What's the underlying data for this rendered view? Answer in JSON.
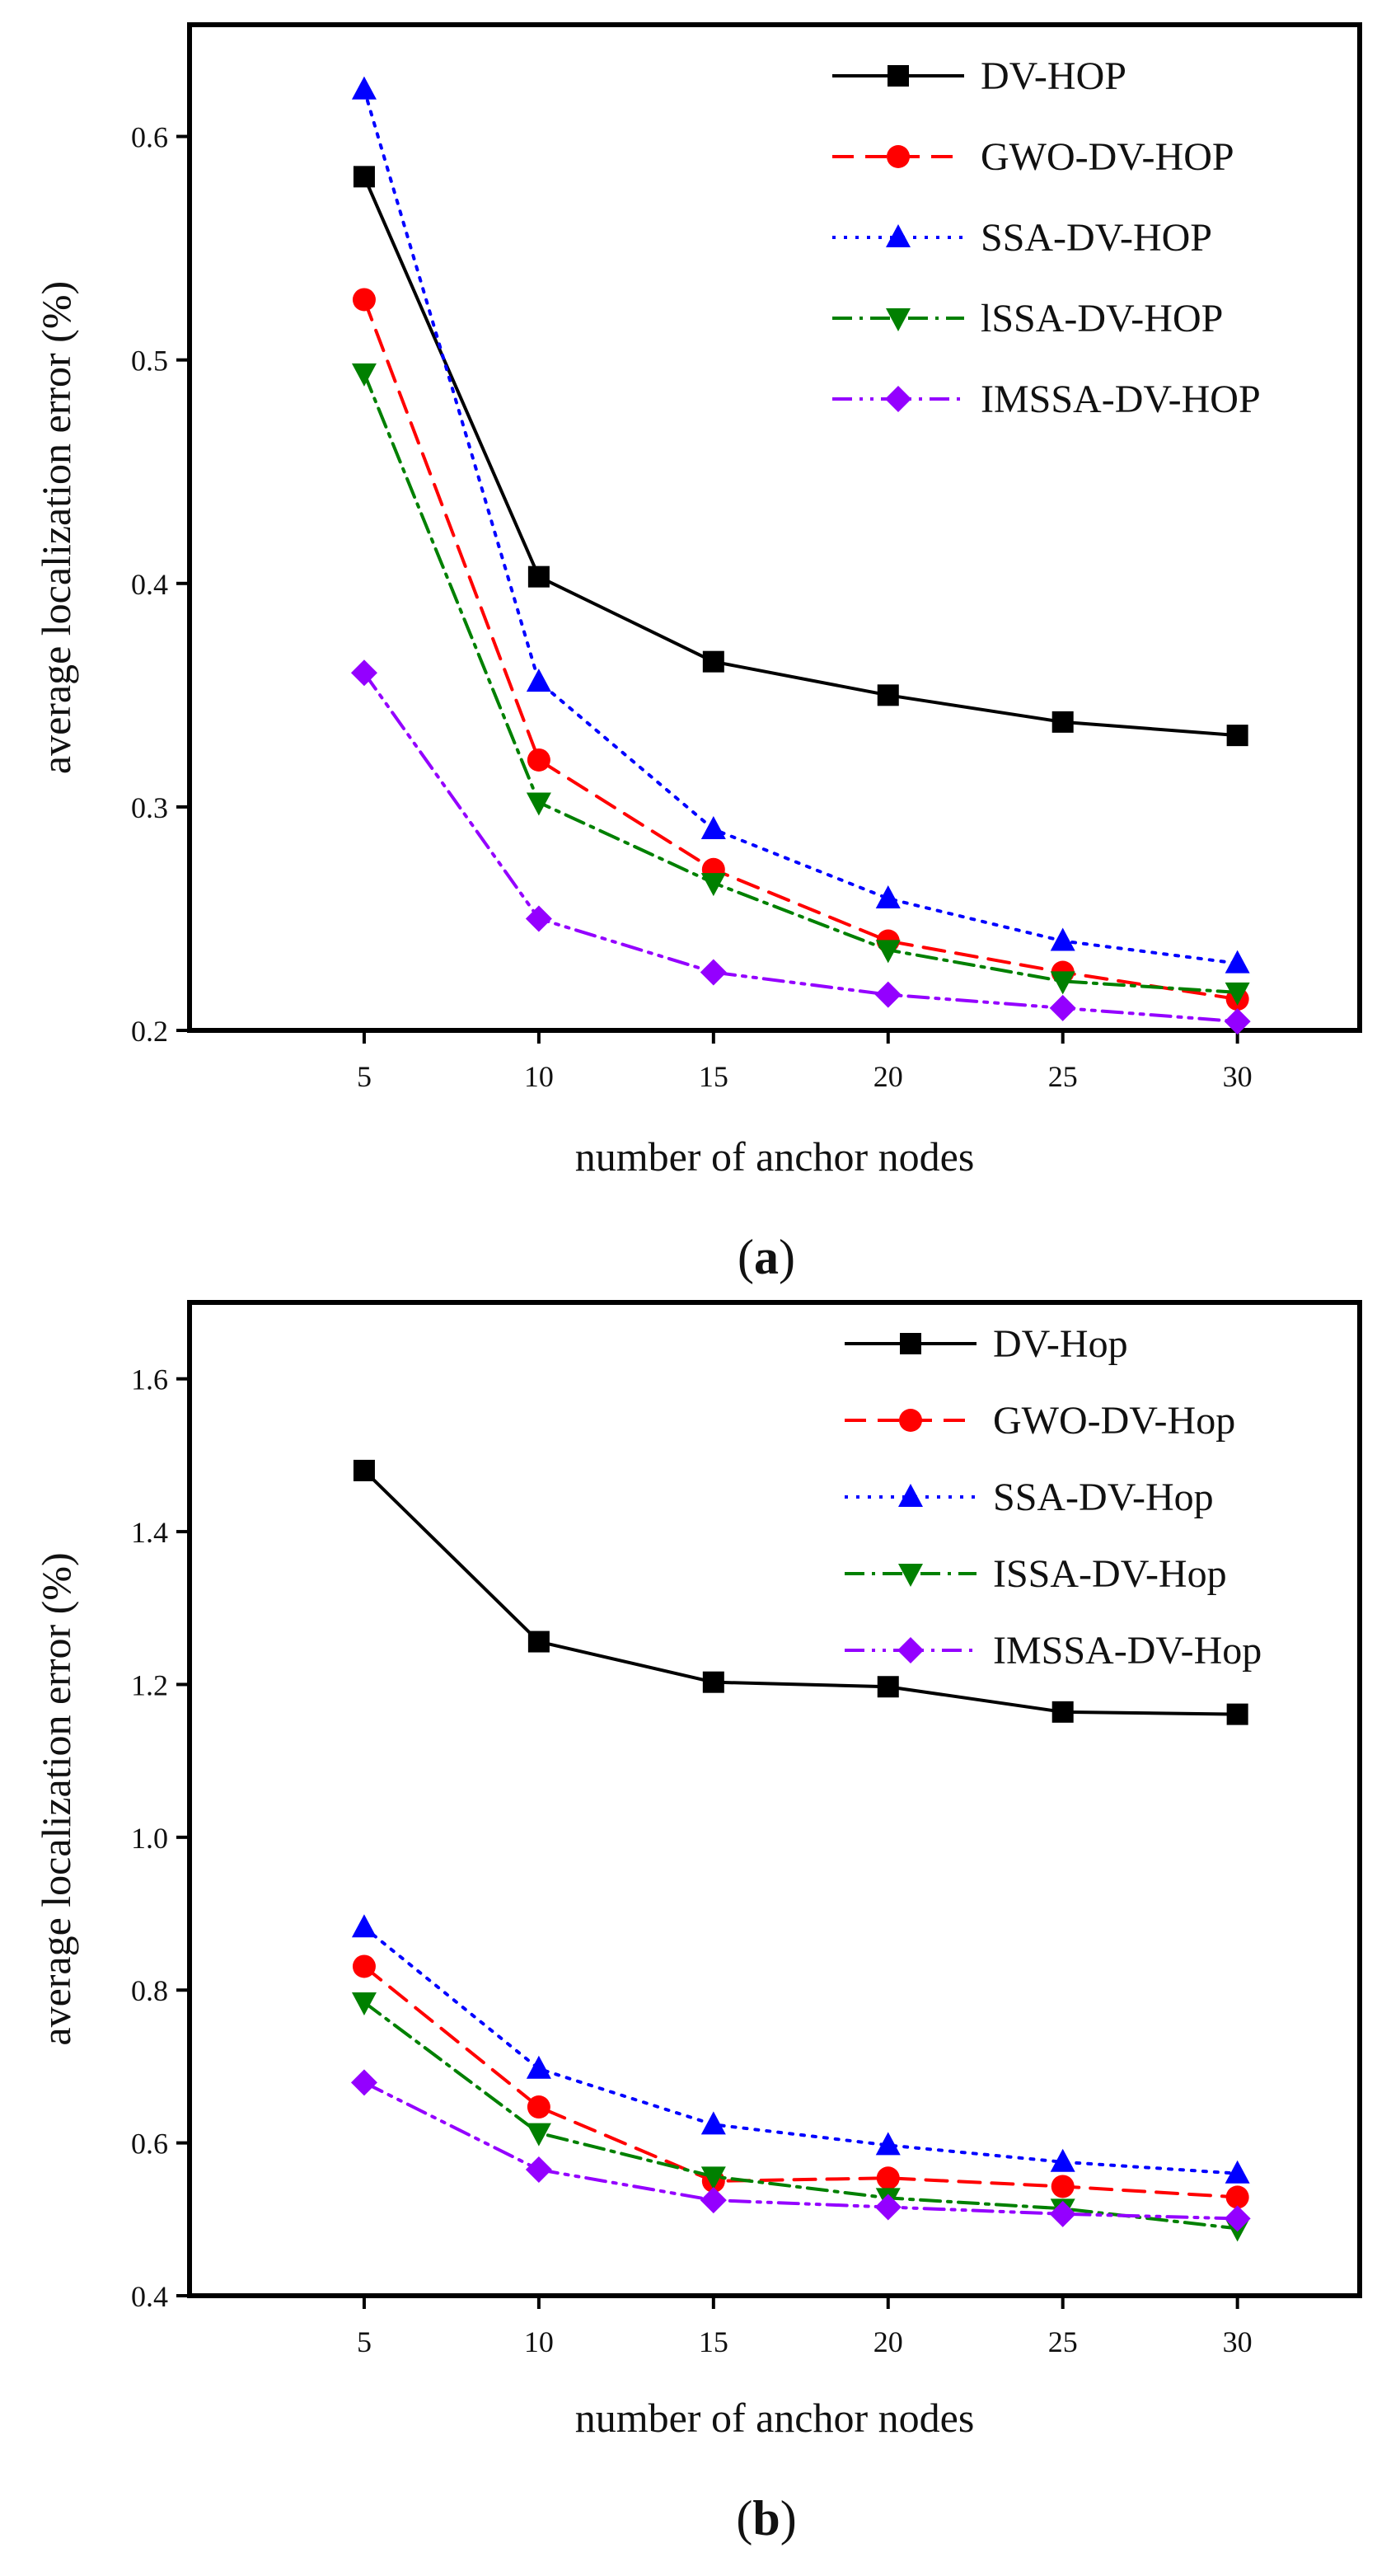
{
  "chart_data": [
    {
      "type": "line",
      "panel_label": "a",
      "title": "",
      "xlabel": "number of anchor nodes",
      "ylabel": "average localization error (%)",
      "x": [
        5,
        10,
        15,
        20,
        25,
        30
      ],
      "x_ticks": [
        "5",
        "10",
        "15",
        "20",
        "25",
        "30"
      ],
      "y_ticks": [
        "0.2",
        "0.3",
        "0.4",
        "0.5",
        "0.6"
      ],
      "y_tick_values": [
        0.2,
        0.3,
        0.4,
        0.5,
        0.6
      ],
      "xlim": [
        0,
        33.5
      ],
      "ylim": [
        0.2,
        0.65
      ],
      "grid": false,
      "legend_position": "top-right",
      "series": [
        {
          "name": "DV-HOP",
          "values": [
            0.582,
            0.403,
            0.365,
            0.35,
            0.338,
            0.332
          ],
          "color": "#000000",
          "dash": "solid",
          "marker": "square"
        },
        {
          "name": "GWO-DV-HOP",
          "values": [
            0.527,
            0.321,
            0.272,
            0.24,
            0.226,
            0.214
          ],
          "color": "#ff0000",
          "dash": "dash",
          "marker": "circle"
        },
        {
          "name": "SSA-DV-HOP",
          "values": [
            0.621,
            0.356,
            0.29,
            0.259,
            0.24,
            0.23
          ],
          "color": "#0000ff",
          "dash": "dot",
          "marker": "triangle-up"
        },
        {
          "name": "lSSA-DV-HOP",
          "values": [
            0.494,
            0.302,
            0.266,
            0.236,
            0.222,
            0.217
          ],
          "color": "#008000",
          "dash": "dashdot",
          "marker": "triangle-down"
        },
        {
          "name": "IMSSA-DV-HOP",
          "values": [
            0.36,
            0.25,
            0.226,
            0.216,
            0.21,
            0.204
          ],
          "color": "#9400ff",
          "dash": "dashdotdot",
          "marker": "diamond"
        }
      ]
    },
    {
      "type": "line",
      "panel_label": "b",
      "title": "",
      "xlabel": "number of anchor nodes",
      "ylabel": "average localization error (%)",
      "x": [
        5,
        10,
        15,
        20,
        25,
        30
      ],
      "x_ticks": [
        "5",
        "10",
        "15",
        "20",
        "25",
        "30"
      ],
      "y_ticks": [
        "0.4",
        "0.6",
        "0.8",
        "1.0",
        "1.2",
        "1.4",
        "1.6"
      ],
      "y_tick_values": [
        0.4,
        0.6,
        0.8,
        1.0,
        1.2,
        1.4,
        1.6
      ],
      "xlim": [
        0,
        33.5
      ],
      "ylim": [
        0.4,
        1.7
      ],
      "grid": false,
      "legend_position": "top-right",
      "series": [
        {
          "name": "DV-Hop",
          "values": [
            1.48,
            1.256,
            1.203,
            1.197,
            1.164,
            1.161
          ],
          "color": "#000000",
          "dash": "solid",
          "marker": "square"
        },
        {
          "name": "GWO-DV-Hop",
          "values": [
            0.831,
            0.647,
            0.55,
            0.554,
            0.543,
            0.529
          ],
          "color": "#ff0000",
          "dash": "dash",
          "marker": "circle"
        },
        {
          "name": "SSA-DV-Hop",
          "values": [
            0.882,
            0.697,
            0.624,
            0.597,
            0.575,
            0.56
          ],
          "color": "#0000ff",
          "dash": "dot",
          "marker": "triangle-up"
        },
        {
          "name": "ISSA-DV-Hop",
          "values": [
            0.784,
            0.613,
            0.556,
            0.528,
            0.514,
            0.488
          ],
          "color": "#008000",
          "dash": "dashdot",
          "marker": "triangle-down"
        },
        {
          "name": "IMSSA-DV-Hop",
          "values": [
            0.679,
            0.565,
            0.525,
            0.516,
            0.507,
            0.501
          ],
          "color": "#9400ff",
          "dash": "dashdotdot",
          "marker": "diamond"
        }
      ]
    }
  ]
}
